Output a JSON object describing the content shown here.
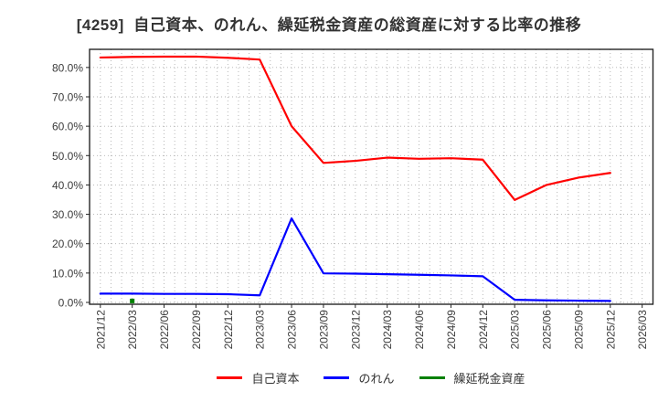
{
  "chart_data": {
    "type": "line",
    "title": "[4259]  自己資本、のれん、繰延税金資産の総資産に対する比率の推移",
    "stock_code": "4259",
    "x_tick_labels": [
      "2021/12",
      "2022/03",
      "2022/06",
      "2022/09",
      "2022/12",
      "2023/03",
      "2023/06",
      "2023/09",
      "2023/12",
      "2024/03",
      "2024/06",
      "2024/09",
      "2024/12",
      "2025/03",
      "2025/06",
      "2025/09",
      "2025/12",
      "2026/03"
    ],
    "y_tick_labels": [
      "0.0%",
      "10.0%",
      "20.0%",
      "30.0%",
      "40.0%",
      "50.0%",
      "60.0%",
      "70.0%",
      "80.0%"
    ],
    "ylim": [
      0,
      86
    ],
    "grid": "dotted gray, horizontal every 10%, vertical monthly",
    "legend_position": "bottom-center",
    "categories": [
      "2021/12",
      "2022/03",
      "2022/06",
      "2022/09",
      "2022/12",
      "2023/03",
      "2023/06",
      "2023/09",
      "2023/12",
      "2024/03",
      "2024/06",
      "2024/09",
      "2024/12",
      "2025/03",
      "2025/06",
      "2025/09",
      "2025/12"
    ],
    "series": [
      {
        "name": "自己資本",
        "color": "#ff0000",
        "values": [
          83.4,
          83.6,
          83.7,
          83.7,
          83.3,
          82.7,
          60.0,
          47.5,
          48.2,
          49.3,
          48.9,
          49.1,
          48.6,
          34.9,
          40.0,
          42.5,
          44.1
        ]
      },
      {
        "name": "のれん",
        "color": "#0000ff",
        "values": [
          3.0,
          3.0,
          2.9,
          2.9,
          2.8,
          2.4,
          28.6,
          9.9,
          9.8,
          9.6,
          9.4,
          9.2,
          8.9,
          0.9,
          0.7,
          0.6,
          0.5
        ]
      },
      {
        "name": "繰延税金資産",
        "color": "#008000",
        "values": [
          null,
          0.5,
          null,
          null,
          null,
          null,
          null,
          null,
          null,
          null,
          null,
          null,
          null,
          null,
          null,
          null,
          null
        ]
      }
    ],
    "colors": {
      "grid": "#b0b0b0",
      "axis_border": "#262626",
      "tick_label": "#3b3b3b",
      "title": "#333333"
    }
  }
}
